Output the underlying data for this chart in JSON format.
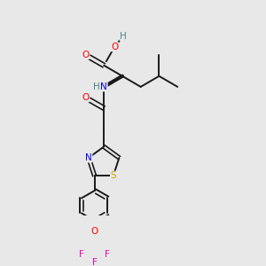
{
  "background_color": "#e8e8e8",
  "bond_color": "#1a1a1a",
  "atom_colors": {
    "O": "#ff0000",
    "N": "#0000ee",
    "S": "#ccaa00",
    "F": "#ee00aa",
    "H_gray": "#4a8888",
    "C": "#1a1a1a"
  },
  "figsize": [
    3.0,
    3.0
  ],
  "dpi": 100
}
